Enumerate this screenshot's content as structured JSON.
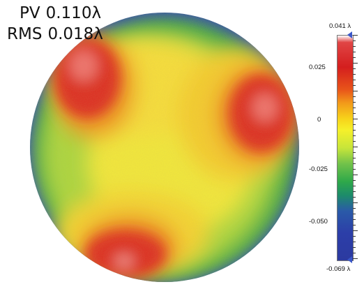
{
  "stats": {
    "pv": {
      "label": "PV",
      "value": "0.110λ"
    },
    "rms": {
      "label": "RMS",
      "value": "0.018λ"
    }
  },
  "colorbar": {
    "max_label": "0.041 λ",
    "min_label": "-0.069 λ",
    "ticks": [
      "0.025",
      "0",
      "-0.025",
      "-0.050"
    ]
  }
}
